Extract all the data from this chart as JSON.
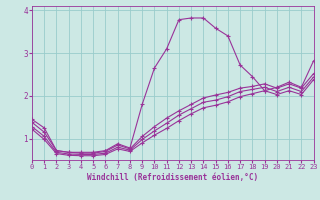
{
  "xlabel": "Windchill (Refroidissement éolien,°C)",
  "bg_color": "#cce8e4",
  "line_color": "#993399",
  "grid_color": "#99cccc",
  "x_series1": [
    0,
    1,
    2,
    3,
    4,
    5,
    6,
    7,
    8,
    9,
    10,
    11,
    12,
    13,
    14,
    15,
    16,
    17,
    18,
    19,
    20,
    21,
    22,
    23
  ],
  "y_series1": [
    1.45,
    1.25,
    0.72,
    0.68,
    0.68,
    0.68,
    0.72,
    0.88,
    0.78,
    1.8,
    2.65,
    3.1,
    3.78,
    3.82,
    3.82,
    3.58,
    3.4,
    2.72,
    2.45,
    2.12,
    2.2,
    2.32,
    2.2,
    2.82
  ],
  "x_series2": [
    0,
    1,
    2,
    3,
    4,
    5,
    6,
    7,
    8,
    9,
    10,
    11,
    12,
    13,
    14,
    15,
    16,
    17,
    18,
    19,
    20,
    21,
    22,
    23
  ],
  "y_series2": [
    1.38,
    1.15,
    0.72,
    0.68,
    0.66,
    0.66,
    0.7,
    0.85,
    0.76,
    1.05,
    1.28,
    1.48,
    1.65,
    1.8,
    1.95,
    2.02,
    2.08,
    2.18,
    2.22,
    2.28,
    2.18,
    2.28,
    2.18,
    2.52
  ],
  "x_series3": [
    0,
    1,
    2,
    3,
    4,
    5,
    6,
    7,
    8,
    9,
    10,
    11,
    12,
    13,
    14,
    15,
    16,
    17,
    18,
    19,
    20,
    21,
    22,
    23
  ],
  "y_series3": [
    1.28,
    1.05,
    0.68,
    0.64,
    0.63,
    0.63,
    0.66,
    0.8,
    0.73,
    0.98,
    1.18,
    1.36,
    1.55,
    1.7,
    1.85,
    1.9,
    1.98,
    2.1,
    2.15,
    2.2,
    2.1,
    2.2,
    2.1,
    2.44
  ],
  "x_series4": [
    0,
    1,
    2,
    3,
    4,
    5,
    6,
    7,
    8,
    9,
    10,
    11,
    12,
    13,
    14,
    15,
    16,
    17,
    18,
    19,
    20,
    21,
    22,
    23
  ],
  "y_series4": [
    1.22,
    0.98,
    0.65,
    0.61,
    0.6,
    0.6,
    0.63,
    0.76,
    0.7,
    0.9,
    1.08,
    1.24,
    1.42,
    1.58,
    1.72,
    1.78,
    1.86,
    1.98,
    2.05,
    2.12,
    2.03,
    2.12,
    2.03,
    2.38
  ],
  "xlim": [
    0,
    23
  ],
  "ylim": [
    0.5,
    4.1
  ],
  "ytick_vals": [
    1,
    2,
    3,
    4
  ],
  "ytick_labels": [
    "1",
    "2",
    "3",
    "4"
  ],
  "xticks": [
    0,
    1,
    2,
    3,
    4,
    5,
    6,
    7,
    8,
    9,
    10,
    11,
    12,
    13,
    14,
    15,
    16,
    17,
    18,
    19,
    20,
    21,
    22,
    23
  ],
  "tick_fontsize": 5.0,
  "xlabel_fontsize": 5.5
}
